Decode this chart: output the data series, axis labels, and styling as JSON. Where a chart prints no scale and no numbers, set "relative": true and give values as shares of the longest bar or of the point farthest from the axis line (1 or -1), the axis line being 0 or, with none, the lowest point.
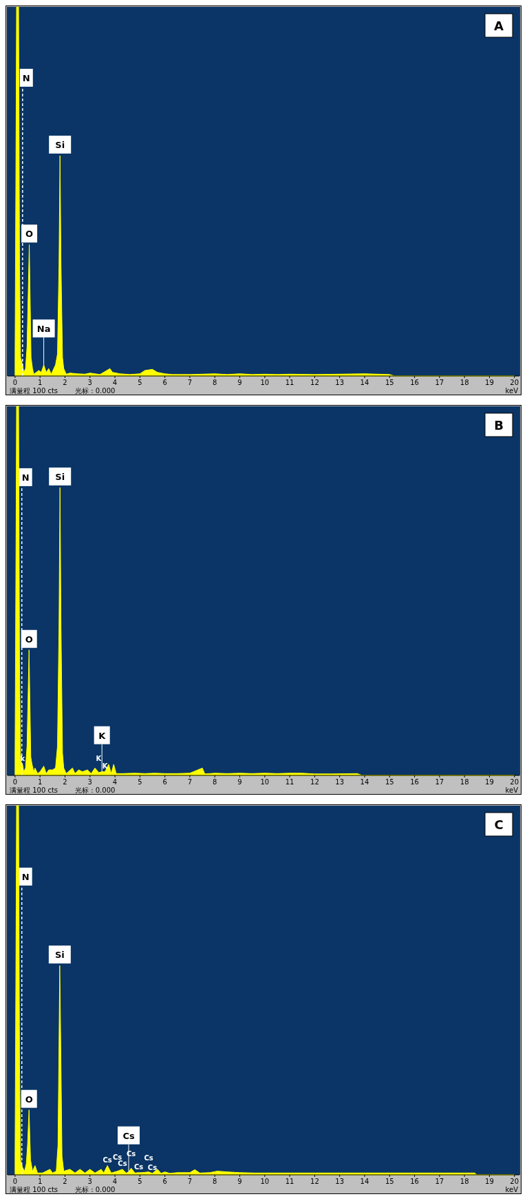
{
  "chart_data": [
    {
      "type": "area",
      "title": "A",
      "relative": true,
      "color": "#ffff00",
      "xlim": [
        -0.3,
        20.2
      ],
      "xticks": [
        0,
        1,
        2,
        3,
        4,
        5,
        6,
        7,
        8,
        9,
        10,
        11,
        12,
        13,
        14,
        15,
        16,
        17,
        18,
        19,
        20
      ],
      "xlabel": "keV",
      "x": [
        0,
        0.03,
        0.06,
        0.14,
        0.18,
        0.22,
        0.3,
        0.35,
        0.42,
        0.48,
        0.57,
        0.64,
        0.7,
        0.75,
        0.85,
        0.95,
        1.05,
        1.15,
        1.25,
        1.35,
        1.45,
        1.55,
        1.62,
        1.7,
        1.76,
        1.8,
        1.84,
        1.9,
        1.95,
        2.05,
        2.2,
        2.5,
        2.8,
        3.0,
        3.4,
        3.8,
        3.9,
        4.2,
        4.6,
        5.0,
        5.2,
        5.5,
        5.7,
        6.0,
        6.3,
        7.0,
        8.0,
        8.5,
        9.0,
        9.5,
        10.0,
        10.5,
        11.0,
        12.0,
        13.0,
        14.0,
        15.0,
        15.2,
        20
      ],
      "values": [
        0.05,
        0.5,
        1,
        1,
        0.3,
        0.05,
        0.03,
        0.01,
        0.02,
        0.08,
        0.356,
        0.05,
        0.02,
        0.005,
        0.01,
        0.015,
        0.01,
        0.03,
        0.01,
        0.02,
        0.005,
        0.02,
        0.03,
        0.06,
        0.3,
        0.597,
        0.3,
        0.05,
        0.02,
        0.005,
        0.008,
        0.006,
        0.005,
        0.008,
        0.004,
        0.02,
        0.01,
        0.006,
        0.004,
        0.006,
        0.015,
        0.018,
        0.01,
        0.006,
        0.004,
        0.004,
        0.006,
        0.004,
        0.006,
        0.004,
        0.005,
        0.004,
        0.005,
        0.004,
        0.005,
        0.006,
        0.004,
        0,
        0
      ],
      "ref_lines": [
        {
          "axis": "x",
          "value": 0.3,
          "label": "N",
          "line_style": "dashed",
          "color": "#ffffff"
        }
      ],
      "annotations": [
        {
          "text": "O",
          "x": 0.57,
          "y": 0.356
        },
        {
          "text": "Si",
          "x": 1.8,
          "y": 0.597
        },
        {
          "text": "Na",
          "x": 1.15,
          "y": 0.03
        },
        "满量程 100 cts",
        "光标 : 0.000"
      ]
    },
    {
      "type": "area",
      "title": "B",
      "relative": true,
      "color": "#ffff00",
      "xlim": [
        -0.3,
        20.2
      ],
      "xticks": [
        0,
        1,
        2,
        3,
        4,
        5,
        6,
        7,
        8,
        9,
        10,
        11,
        12,
        13,
        14,
        15,
        16,
        17,
        18,
        19,
        20
      ],
      "xlabel": "keV",
      "x": [
        0,
        0.03,
        0.06,
        0.14,
        0.18,
        0.22,
        0.3,
        0.35,
        0.42,
        0.48,
        0.56,
        0.63,
        0.68,
        0.75,
        0.8,
        0.9,
        1.0,
        1.15,
        1.25,
        1.35,
        1.5,
        1.62,
        1.7,
        1.76,
        1.8,
        1.84,
        1.9,
        1.95,
        2.05,
        2.3,
        2.4,
        2.55,
        2.7,
        2.9,
        3.05,
        3.2,
        3.35,
        3.48,
        3.6,
        3.75,
        3.85,
        3.95,
        4.05,
        4.3,
        4.8,
        5.2,
        5.6,
        6.0,
        6.5,
        7.0,
        7.5,
        7.6,
        8.0,
        8.5,
        9.0,
        9.5,
        10.0,
        10.5,
        11.0,
        11.5,
        12.0,
        12.7,
        13.7,
        13.9,
        20
      ],
      "values": [
        0.05,
        0.5,
        1,
        1,
        0.3,
        0.04,
        0.03,
        0.01,
        0.02,
        0.08,
        0.34,
        0.05,
        0.03,
        0.01,
        0.02,
        0.005,
        0.01,
        0.025,
        0.005,
        0.015,
        0.015,
        0.02,
        0.08,
        0.4,
        0.78,
        0.4,
        0.06,
        0.02,
        0.005,
        0.02,
        0.005,
        0.015,
        0.01,
        0.015,
        0.005,
        0.02,
        0.008,
        0.01,
        0.01,
        0.03,
        0.005,
        0.03,
        0.005,
        0.005,
        0.006,
        0.005,
        0.006,
        0.005,
        0.005,
        0.006,
        0.02,
        0.004,
        0.006,
        0.005,
        0.006,
        0.005,
        0.006,
        0.005,
        0.006,
        0.006,
        0.004,
        0.004,
        0.005,
        0,
        0
      ],
      "ref_lines": [
        {
          "axis": "x",
          "value": 0.27,
          "label": "N",
          "line_style": "dashed",
          "color": "#ffffff"
        }
      ],
      "annotations": [
        {
          "text": "O",
          "x": 0.56,
          "y": 0.34
        },
        {
          "text": "Si",
          "x": 1.8,
          "y": 0.78
        },
        {
          "text": "K",
          "x": 3.48,
          "y": 0.01
        },
        {
          "text": "k",
          "x": 0.3,
          "y": 0.03
        },
        {
          "text": "K",
          "x": 3.35,
          "y": 0.008
        },
        {
          "text": "K",
          "x": 3.6,
          "y": 0.01
        },
        "满量程 100 cts",
        "光标 : 0.000"
      ]
    },
    {
      "type": "area",
      "title": "C",
      "relative": true,
      "color": "#ffff00",
      "xlim": [
        -0.3,
        20.2
      ],
      "xticks": [
        0,
        1,
        2,
        3,
        4,
        5,
        6,
        7,
        8,
        9,
        10,
        11,
        12,
        13,
        14,
        15,
        16,
        17,
        18,
        19,
        20
      ],
      "xlabel": "keV",
      "x": [
        0,
        0.03,
        0.06,
        0.14,
        0.18,
        0.22,
        0.3,
        0.38,
        0.45,
        0.5,
        0.56,
        0.62,
        0.7,
        0.8,
        0.9,
        1.1,
        1.4,
        1.5,
        1.65,
        1.72,
        1.76,
        1.79,
        1.83,
        1.88,
        1.95,
        2.2,
        2.4,
        2.6,
        2.8,
        3.0,
        3.2,
        3.45,
        3.55,
        3.7,
        3.85,
        4.1,
        4.3,
        4.45,
        4.55,
        4.65,
        4.8,
        4.95,
        5.1,
        5.35,
        5.5,
        5.7,
        5.85,
        6.0,
        6.2,
        6.5,
        7.0,
        7.2,
        7.4,
        7.8,
        8.1,
        8.5,
        9.0,
        9.6,
        10.6,
        11.1,
        12.0,
        12.7,
        13.3,
        14.5,
        15.8,
        16.9,
        18.4,
        18.5,
        20
      ],
      "values": [
        0.05,
        0.5,
        1,
        1,
        0.3,
        0.04,
        0.02,
        0.01,
        0.03,
        0.08,
        0.176,
        0.04,
        0.01,
        0.025,
        0.005,
        0.005,
        0.015,
        0.005,
        0.01,
        0.08,
        0.35,
        0.567,
        0.35,
        0.05,
        0.01,
        0.015,
        0.005,
        0.015,
        0.005,
        0.015,
        0.005,
        0.015,
        0.005,
        0.025,
        0.005,
        0.01,
        0.015,
        0.005,
        0.008,
        0.018,
        0.005,
        0.006,
        0.006,
        0.008,
        0.004,
        0.015,
        0.004,
        0.008,
        0.004,
        0.006,
        0.006,
        0.014,
        0.005,
        0.006,
        0.01,
        0.008,
        0.006,
        0.005,
        0.005,
        0.005,
        0.005,
        0.005,
        0.005,
        0.005,
        0.005,
        0.005,
        0.005,
        0,
        0
      ],
      "ref_lines": [
        {
          "axis": "x",
          "value": 0.27,
          "label": "N",
          "line_style": "dashed",
          "color": "#ffffff"
        }
      ],
      "annotations": [
        {
          "text": "O",
          "x": 0.56,
          "y": 0.176
        },
        {
          "text": "Si",
          "x": 1.79,
          "y": 0.567
        },
        {
          "text": "Cs",
          "x": 4.55,
          "y": 0.008
        },
        {
          "text": "Cs",
          "x": 3.7,
          "y": 0.025
        },
        {
          "text": "Cs",
          "x": 4.1,
          "y": 0.01
        },
        {
          "text": "Cs",
          "x": 4.3,
          "y": 0.015
        },
        {
          "text": "Cs",
          "x": 4.65,
          "y": 0.018
        },
        {
          "text": "Cs",
          "x": 4.95,
          "y": 0.006
        },
        {
          "text": "Cs",
          "x": 5.35,
          "y": 0.008
        },
        {
          "text": "Cs",
          "x": 5.5,
          "y": 0.004
        },
        "满量程 100 cts",
        "光标 : 0.000"
      ]
    }
  ]
}
